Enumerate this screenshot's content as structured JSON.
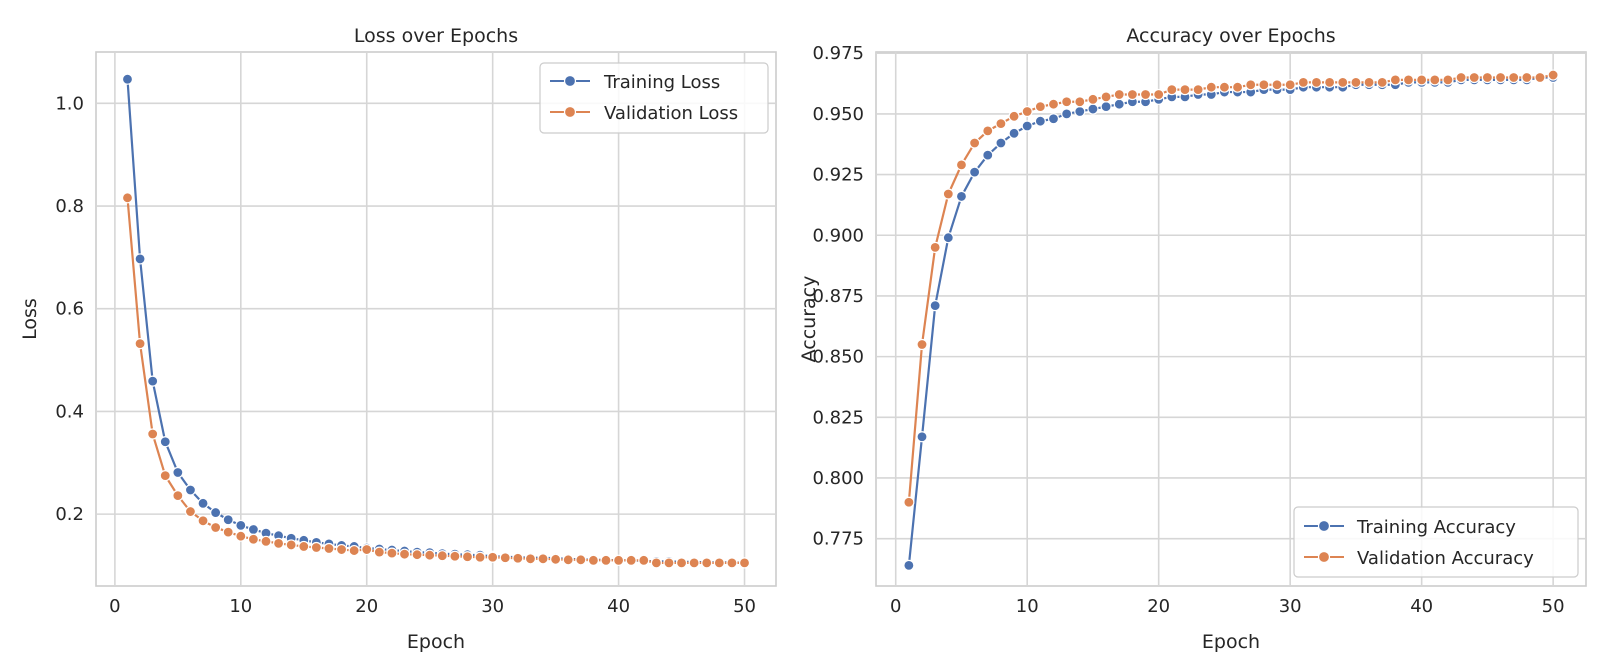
{
  "colors": {
    "training": "#4c72b0",
    "validation": "#dd8452"
  },
  "chart_data": [
    {
      "type": "line",
      "title": "Loss over Epochs",
      "xlabel": "Epoch",
      "ylabel": "Loss",
      "xlim": [
        -1.5,
        52.5
      ],
      "ylim": [
        0.06,
        1.1
      ],
      "xticks": [
        0,
        10,
        20,
        30,
        40,
        50
      ],
      "yticks": [
        0.2,
        0.4,
        0.6,
        0.8,
        1.0
      ],
      "ytick_labels": [
        "0.2",
        "0.4",
        "0.6",
        "0.8",
        "1.0"
      ],
      "grid": true,
      "legend": "top-right",
      "x": [
        1,
        2,
        3,
        4,
        5,
        6,
        7,
        8,
        9,
        10,
        11,
        12,
        13,
        14,
        15,
        16,
        17,
        18,
        19,
        20,
        21,
        22,
        23,
        24,
        25,
        26,
        27,
        28,
        29,
        30,
        31,
        32,
        33,
        34,
        35,
        36,
        37,
        38,
        39,
        40,
        41,
        42,
        43,
        44,
        45,
        46,
        47,
        48,
        49,
        50
      ],
      "series": [
        {
          "name": "Training Loss",
          "color_key": "training",
          "values": [
            1.047,
            0.697,
            0.459,
            0.341,
            0.281,
            0.247,
            0.221,
            0.203,
            0.189,
            0.178,
            0.17,
            0.163,
            0.158,
            0.153,
            0.149,
            0.145,
            0.142,
            0.139,
            0.137,
            0.134,
            0.132,
            0.13,
            0.128,
            0.126,
            0.125,
            0.123,
            0.122,
            0.121,
            0.12,
            0.118,
            0.117,
            0.116,
            0.115,
            0.115,
            0.114,
            0.113,
            0.112,
            0.111,
            0.111,
            0.11,
            0.11,
            0.109,
            0.108,
            0.108,
            0.107,
            0.107,
            0.106,
            0.106,
            0.106,
            0.105
          ]
        },
        {
          "name": "Validation Loss",
          "color_key": "validation",
          "values": [
            0.816,
            0.532,
            0.356,
            0.275,
            0.236,
            0.205,
            0.187,
            0.174,
            0.165,
            0.157,
            0.151,
            0.147,
            0.143,
            0.14,
            0.137,
            0.135,
            0.133,
            0.131,
            0.129,
            0.131,
            0.126,
            0.124,
            0.122,
            0.121,
            0.12,
            0.119,
            0.118,
            0.117,
            0.116,
            0.116,
            0.115,
            0.114,
            0.113,
            0.113,
            0.112,
            0.111,
            0.111,
            0.11,
            0.11,
            0.11,
            0.11,
            0.11,
            0.105,
            0.105,
            0.105,
            0.105,
            0.105,
            0.105,
            0.105,
            0.105
          ]
        }
      ]
    },
    {
      "type": "line",
      "title": "Accuracy over Epochs",
      "xlabel": "Epoch",
      "ylabel": "Accuracy",
      "xlim": [
        -1.5,
        52.5
      ],
      "ylim": [
        0.7555,
        0.9755
      ],
      "xticks": [
        0,
        10,
        20,
        30,
        40,
        50
      ],
      "yticks": [
        0.775,
        0.8,
        0.825,
        0.85,
        0.875,
        0.9,
        0.925,
        0.95,
        0.975
      ],
      "ytick_labels": [
        "0.775",
        "0.800",
        "0.825",
        "0.850",
        "0.875",
        "0.900",
        "0.925",
        "0.950",
        "0.975"
      ],
      "grid": true,
      "legend": "bottom-right",
      "x": [
        1,
        2,
        3,
        4,
        5,
        6,
        7,
        8,
        9,
        10,
        11,
        12,
        13,
        14,
        15,
        16,
        17,
        18,
        19,
        20,
        21,
        22,
        23,
        24,
        25,
        26,
        27,
        28,
        29,
        30,
        31,
        32,
        33,
        34,
        35,
        36,
        37,
        38,
        39,
        40,
        41,
        42,
        43,
        44,
        45,
        46,
        47,
        48,
        49,
        50
      ],
      "series": [
        {
          "name": "Training Accuracy",
          "color_key": "training",
          "values": [
            0.764,
            0.817,
            0.871,
            0.899,
            0.916,
            0.926,
            0.933,
            0.938,
            0.942,
            0.945,
            0.947,
            0.948,
            0.95,
            0.951,
            0.952,
            0.953,
            0.954,
            0.955,
            0.955,
            0.956,
            0.957,
            0.957,
            0.958,
            0.958,
            0.959,
            0.959,
            0.959,
            0.96,
            0.96,
            0.96,
            0.961,
            0.961,
            0.961,
            0.961,
            0.962,
            0.962,
            0.962,
            0.962,
            0.963,
            0.963,
            0.963,
            0.963,
            0.964,
            0.964,
            0.964,
            0.964,
            0.964,
            0.964,
            0.965,
            0.965
          ]
        },
        {
          "name": "Validation Accuracy",
          "color_key": "validation",
          "values": [
            0.79,
            0.855,
            0.895,
            0.917,
            0.929,
            0.938,
            0.943,
            0.946,
            0.949,
            0.951,
            0.953,
            0.954,
            0.955,
            0.955,
            0.956,
            0.957,
            0.958,
            0.958,
            0.958,
            0.958,
            0.96,
            0.96,
            0.96,
            0.961,
            0.961,
            0.961,
            0.962,
            0.962,
            0.962,
            0.962,
            0.963,
            0.963,
            0.963,
            0.963,
            0.963,
            0.963,
            0.963,
            0.964,
            0.964,
            0.964,
            0.964,
            0.964,
            0.965,
            0.965,
            0.965,
            0.965,
            0.965,
            0.965,
            0.965,
            0.966
          ]
        }
      ]
    }
  ]
}
